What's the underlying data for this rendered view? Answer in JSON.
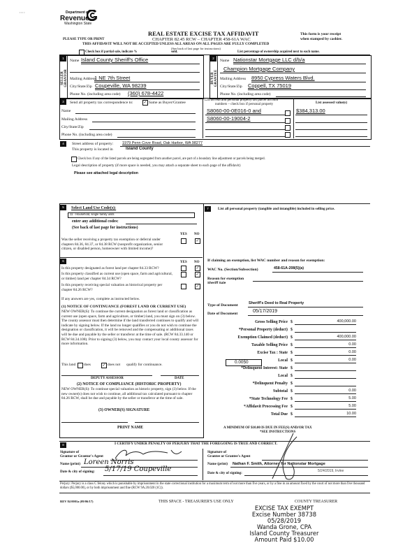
{
  "marks": {
    "top_left": "' '    ' '"
  },
  "header": {
    "logo": {
      "line1": "Department of",
      "line2": "Revenue",
      "line3": "Washington State"
    },
    "title": "REAL ESTATE EXCISE TAX AFFIDAVIT",
    "please_type": "PLEASE TYPE OR PRINT",
    "chapter": "CHAPTER 82.45 RCW – CHAPTER 458-61A WAC",
    "receipt_1": "This form is your receipt",
    "receipt_2": "when stamped by cashier.",
    "warning": "THIS AFFIDAVIT WILL NOT BE ACCEPTED UNLESS ALL AREAS ON ALL PAGES ARE FULLY COMPLETED",
    "see_back": "(See back of last page for instructions)",
    "partial_sale": "Check box if partial sale, indicate %",
    "sold": "sold.",
    "list_pct": "List percentage of ownership acquired next to each name."
  },
  "seller": {
    "num": "1",
    "side_label_1": "SELLER",
    "side_label_2": "GRANTOR",
    "name_label": "Name",
    "name": "Island County Sheriff's Office",
    "address_label": "Mailing Address",
    "address": "1 NE 7th Street",
    "city_label": "City/State/Zip",
    "city": "Coupeville, WA 98239",
    "phone_label": "Phone No. (including area code)",
    "phone": "(360) 678-4422"
  },
  "buyer": {
    "num": "2",
    "side_label_1": "BUYER",
    "side_label_2": "GRANTEE",
    "name_label": "Name",
    "name_1": "Nationstar Mortgage LLC d/b/a",
    "name_2": "Champion Mortgage Company",
    "address_label": "Mailing Address",
    "address": "8950 Cypress Waters Blvd.",
    "city_label": "City/State/Zip",
    "city": "Coppell, TX 75019",
    "phone_label": "Phone No. (including area code)"
  },
  "section3": {
    "num": "3",
    "send_label": "Send all property tax correspondence to:",
    "same_label": "Same as Buyer/Grantee",
    "same_checked": true,
    "name_label": "Name",
    "address_label": "Mailing Address",
    "city_label": "City/State/Zip",
    "phone_label": "Phone No. (including area code)",
    "parcel_header_1": "List all real and personal property tax parcel account",
    "parcel_header_2": "numbers – check box if personal property",
    "parcels": [
      "S8060-00-0E016-0 and",
      "S8060-00-19004-2",
      "",
      ""
    ],
    "assessed_header": "List assessed value(s)",
    "assessed": [
      "$384,313.00",
      "",
      "",
      ""
    ]
  },
  "section4": {
    "num": "4",
    "street_label": "Street address of property:",
    "street": "1979 Penn Cove Road, Oak Harbor, WA 98277",
    "located_label": "This property is located in",
    "located": "Island County",
    "segregated_label": "Check box if any of the listed parcels are being segregated from another parcel, are part of a boundary line adjustment or parcels being merged.",
    "legal_label": "Legal description of property (if more space is needed, you may attach a separate sheet to each page of the affidavit)",
    "legal": "Please see attached legal description"
  },
  "section5": {
    "num": "5",
    "select_label": "Select Land Use Code(s):",
    "code": "11 - Household, single family units",
    "additional_label": "enter any additional codes:",
    "see_back": "(See back of last page for instructions)",
    "yes": "YES",
    "no": "NO",
    "question": "Was the seller receiving a property tax exemption or deferral under chapters 84.36, 84.37, or 84.38 RCW (nonprofit organization, senior citizen, or disabled person, homeowner with limited income)?",
    "answer": "no"
  },
  "section6": {
    "num": "6",
    "yes": "YES",
    "no": "NO",
    "questions": [
      {
        "text": "Is this property designated as forest land per chapter 84.33 RCW?",
        "answer": "no"
      },
      {
        "text": "Is this property classified as current use (open space, farm and agricultural, or timber) land per chapter 84.34 RCW?",
        "answer": "no"
      },
      {
        "text": "Is this property receiving special valuation as historical property per chapter 84.26 RCW?",
        "answer": "no"
      }
    ],
    "if_yes": "If any answers are yes, complete as instructed below.",
    "notice1_title": "(1) NOTICE OF CONTINUANCE (FOREST LAND OR CURRENT USE)",
    "notice1_body": "NEW OWNER(S): To continue the current designation as forest land or classification as current use (open space, farm and agriculture, or timber) land, you must sign on (3) below. The county assessor must then determine if the land transferred continues to qualify and will indicate by signing below. If the land no longer qualifies or you do not wish to continue the designation or classification, it will be removed and the compensating or additional taxes will be due and payable by the seller or transferor at the time of sale. (RCW 84.33.140 or RCW 84.34.108). Prior to signing (3) below, you may contact your local county assessor for more information.",
    "this_land": "This land",
    "does": "does",
    "does_not": "does not",
    "qualify": "qualify for continuance.",
    "qualify_answer": "does not",
    "deputy_assessor": "DEPUTY ASSESSOR",
    "date": "DATE",
    "notice2_title": "(2) NOTICE OF COMPLIANCE (HISTORIC PROPERTY)",
    "notice2_body": "NEW OWNER(S): To continue special valuation as historic property, sign (3) below. If the new owner(s) does not wish to continue, all additional tax calculated pursuant to chapter 84.26 RCW, shall be due and payable by the seller or transferor at the time of sale.",
    "owner_sig": "(3) OWNER(S) SIGNATURE",
    "print_name": "PRINT NAME"
  },
  "section7": {
    "num": "7",
    "personal_property_label": "List all personal property (tangible and intangible) included in selling price.",
    "exemption_label": "If claiming an exemption, list WAC number and reason for exemption:",
    "wac_label": "WAC No. (Section/Subsection)",
    "wac": "458-61A-208(5)(a)",
    "reason_label": "Reason for exemption",
    "reason": "Sheriff Sale",
    "doc_type_label": "Type of Document",
    "doc_type": "Sheriff's Deed to Real Property",
    "doc_date_label": "Date of Document",
    "doc_date": "05/17/2019",
    "local_rate": "0.0050",
    "amounts": [
      {
        "label": "Gross Selling Price",
        "value": "400,000.00"
      },
      {
        "label": "*Personal Property (deduct)",
        "value": ""
      },
      {
        "label": "Exemption Claimed (deduct)",
        "value": "400,000.00"
      },
      {
        "label": "Taxable Selling Price",
        "value": "0.00"
      },
      {
        "label": "Excise Tax : State",
        "value": "0.00"
      },
      {
        "label": "Local",
        "value": "0.00"
      },
      {
        "label": "*Delinquent Interest: State",
        "value": ""
      },
      {
        "label": "Local",
        "value": ""
      },
      {
        "label": "*Delinquent Penalty",
        "value": ""
      },
      {
        "label": "Subtotal",
        "value": "0.00"
      },
      {
        "label": "*State Technology Fee",
        "value": "5.00"
      },
      {
        "label": "*Affidavit Processing Fee",
        "value": "5.00"
      },
      {
        "label": "Total Due",
        "value": "10.00"
      }
    ],
    "currency": "$",
    "minimum_1": "A MINIMUM OF $10.00 IS DUE IN FEE(S) AND/OR TAX",
    "minimum_2": "*SEE INSTRUCTIONS"
  },
  "section8": {
    "num": "8",
    "certify": "I CERTIFY UNDER PENALTY OF PERJURY THAT THE FOREGOING IS TRUE AND CORRECT.",
    "grantor_sig_label_1": "Signature of",
    "grantor_sig_label_2": "Grantor or Grantor's Agent",
    "grantor_name_label": "Name (print)",
    "grantor_name": "Loreen Norris",
    "grantor_date_label": "Date & city of signing:",
    "grantor_date": "5/17/19 Coupeville",
    "grantee_sig_label_1": "Signature of",
    "grantee_sig_label_2": "Grantee or Grantee's Agent",
    "grantee_name_label": "Name (print)",
    "grantee_name": "Nathan F. Smith, Attorney for Nationstar Mortgage",
    "grantee_date_label": "Date & city of signing:",
    "grantee_date": "5/24/2019, Irvine"
  },
  "footer": {
    "perjury": "Perjury: Perjury is a class C felony which is punishable by imprisonment in the state correctional institution for a maximum term of not more than five years, or by a fine in an amount fixed by the court of not more than five thousand dollars ($5,000.00), or by both imprisonment and fine (RCW 9A.20.020 (1C)).",
    "rev": "REV 84 0001a (09/06/17)",
    "treasurer_use": "THIS SPACE - TREASURER'S USE ONLY",
    "county_treasurer": "COUNTY TREASURER"
  },
  "stamp": {
    "line1": "EXCISE TAX EXEMPT",
    "line2": "Excise Number 38738",
    "line3": "05/28/2019",
    "line4": "Wanda Grone, CPA",
    "line5": "Island County Treasurer",
    "line6": "Amount Paid $10.00"
  }
}
